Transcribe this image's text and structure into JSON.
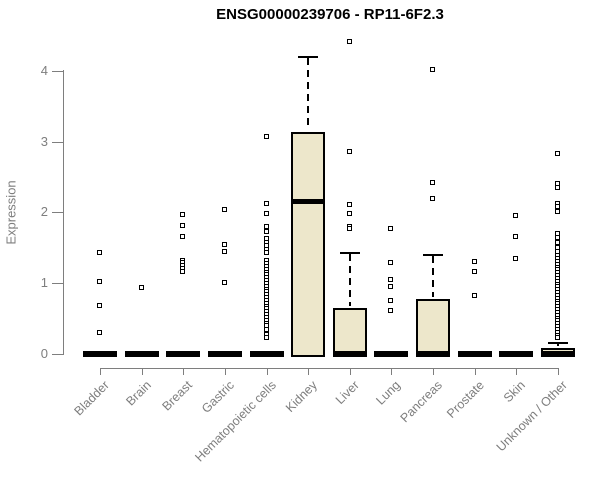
{
  "colors": {
    "box_fill": "#ede7cb",
    "box_border": "#000000",
    "median": "#000000",
    "outlier_fill": "#ffffff",
    "outlier_border": "#000000",
    "axis": "#7e7e7e",
    "tick_labels": "#7e7e7e",
    "title": "#000000"
  },
  "chart_data": {
    "type": "boxplot",
    "title": "ENSG00000239706 - RP11-6F2.3",
    "ylabel": "Expression",
    "xlabel": "",
    "ylim": [
      0,
      4.45
    ],
    "yticks": [
      0,
      1,
      2,
      3,
      4
    ],
    "grid": false,
    "legend": "none",
    "categories": [
      "Bladder",
      "Brain",
      "Breast",
      "Gastric",
      "Hematopoietic cells",
      "Kidney",
      "Liver",
      "Lung",
      "Pancreas",
      "Prostate",
      "Skin",
      "Unknown / Other"
    ],
    "boxes": [
      {
        "category": "Bladder",
        "q1": 0,
        "median": 0,
        "q3": 0,
        "whisker_low": 0,
        "whisker_high": 0,
        "outliers": [
          1.42,
          1.02,
          0.68,
          0.29
        ]
      },
      {
        "category": "Brain",
        "q1": 0,
        "median": 0,
        "q3": 0,
        "whisker_low": 0,
        "whisker_high": 0,
        "outliers": [
          0.93
        ]
      },
      {
        "category": "Breast",
        "q1": 0,
        "median": 0,
        "q3": 0,
        "whisker_low": 0,
        "whisker_high": 0,
        "outliers": [
          1.96,
          1.81,
          1.65,
          1.32,
          1.28,
          1.24,
          1.2,
          1.16
        ]
      },
      {
        "category": "Gastric",
        "q1": 0,
        "median": 0,
        "q3": 0,
        "whisker_low": 0,
        "whisker_high": 0,
        "outliers": [
          2.03,
          1.54,
          1.44,
          1.0
        ]
      },
      {
        "category": "Hematopoietic cells",
        "q1": 0,
        "median": 0,
        "q3": 0,
        "whisker_low": 0,
        "whisker_high": 0,
        "outliers": [
          3.06,
          2.12,
          1.98,
          1.8,
          1.73,
          1.62,
          1.57,
          1.52,
          1.47,
          1.42,
          1.31,
          1.27,
          1.23,
          1.19,
          1.15,
          1.11,
          1.07,
          1.03,
          0.99,
          0.95,
          0.91,
          0.87,
          0.83,
          0.79,
          0.75,
          0.71,
          0.67,
          0.63,
          0.59,
          0.55,
          0.51,
          0.47,
          0.43,
          0.39,
          0.34,
          0.27,
          0.22
        ]
      },
      {
        "category": "Kidney",
        "q1": 0,
        "median": 2.15,
        "q3": 3.14,
        "whisker_low": 0,
        "whisker_high": 4.21,
        "outliers": []
      },
      {
        "category": "Liver",
        "q1": 0,
        "median": 0,
        "q3": 0.65,
        "whisker_low": 0,
        "whisker_high": 1.44,
        "outliers": [
          4.41,
          2.86,
          2.1,
          1.98,
          1.79,
          1.76
        ]
      },
      {
        "category": "Lung",
        "q1": 0,
        "median": 0,
        "q3": 0,
        "whisker_low": 0,
        "whisker_high": 0,
        "outliers": [
          1.76,
          1.28,
          1.05,
          0.94,
          0.75,
          0.61
        ]
      },
      {
        "category": "Pancreas",
        "q1": 0,
        "median": 0,
        "q3": 0.77,
        "whisker_low": 0,
        "whisker_high": 1.41,
        "outliers": [
          4.01,
          2.41,
          2.19
        ]
      },
      {
        "category": "Prostate",
        "q1": 0,
        "median": 0,
        "q3": 0,
        "whisker_low": 0,
        "whisker_high": 0,
        "outliers": [
          1.3,
          1.16,
          0.82
        ]
      },
      {
        "category": "Skin",
        "q1": 0,
        "median": 0,
        "q3": 0,
        "whisker_low": 0,
        "whisker_high": 0,
        "outliers": [
          1.95,
          1.65,
          1.34
        ]
      },
      {
        "category": "Unknown / Other",
        "q1": 0,
        "median": 0,
        "q3": 0.08,
        "whisker_low": 0,
        "whisker_high": 0.17,
        "outliers": [
          2.82,
          2.4,
          2.34,
          2.12,
          2.07,
          2.01,
          1.7,
          1.64,
          1.57,
          1.5,
          1.44,
          1.38,
          1.34,
          1.3,
          1.26,
          1.22,
          1.18,
          1.14,
          1.1,
          1.06,
          1.02,
          0.98,
          0.94,
          0.9,
          0.86,
          0.82,
          0.78,
          0.74,
          0.7,
          0.66,
          0.62,
          0.58,
          0.54,
          0.5,
          0.46,
          0.42,
          0.38,
          0.34,
          0.3,
          0.26,
          0.22
        ]
      }
    ]
  }
}
